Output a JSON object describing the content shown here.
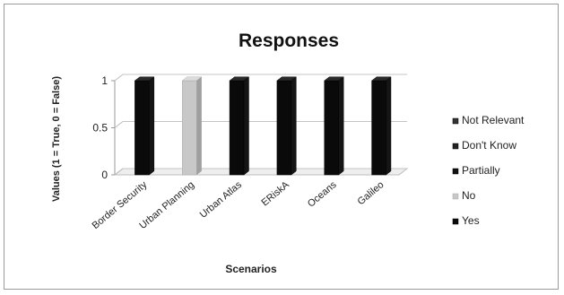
{
  "chart_data": {
    "type": "bar",
    "title": "Responses",
    "xlabel": "Scenarios",
    "ylabel": "Values (1 = True, 0 = False)",
    "categories": [
      "Border Security",
      "Urban Planning",
      "Urban Atlas",
      "ERiskA",
      "Oceans",
      "Galileo"
    ],
    "yticks": [
      "0",
      "0.5",
      "1"
    ],
    "ylim": [
      0,
      1
    ],
    "grid": true,
    "legend_position": "right",
    "series": [
      {
        "name": "Not Relevant",
        "values": [
          0,
          0,
          0,
          0,
          0,
          0
        ],
        "color": "#333333"
      },
      {
        "name": "Don't Know",
        "values": [
          0,
          0,
          0,
          0,
          0,
          0
        ],
        "color": "#222222"
      },
      {
        "name": "Partially",
        "values": [
          0,
          0,
          0,
          0,
          0,
          0
        ],
        "color": "#111111"
      },
      {
        "name": "No",
        "values": [
          0,
          1,
          0,
          0,
          0,
          0
        ],
        "color": "#c8c8c8"
      },
      {
        "name": "Yes",
        "values": [
          1,
          0,
          1,
          1,
          1,
          1
        ],
        "color": "#0a0a0a"
      }
    ]
  }
}
